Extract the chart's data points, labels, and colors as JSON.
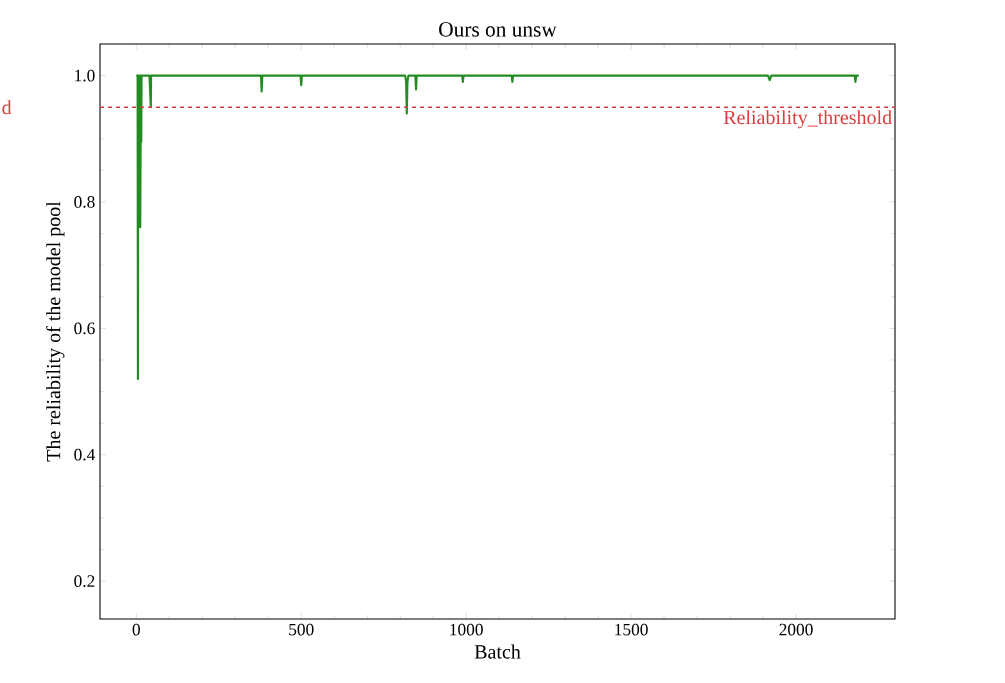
{
  "chart_data": {
    "type": "line",
    "title": "Ours on unsw",
    "xlabel": "Batch",
    "ylabel": "The reliability of the model pool",
    "x": [
      0,
      4,
      5,
      6,
      10,
      12,
      14,
      15,
      16,
      40,
      44,
      45,
      46,
      50,
      378,
      380,
      382,
      498,
      500,
      502,
      815,
      818,
      820,
      822,
      825,
      846,
      848,
      850,
      988,
      990,
      992,
      1138,
      1140,
      1142,
      1915,
      1920,
      1925,
      2178,
      2180,
      2182,
      2190
    ],
    "series": [
      {
        "color": "#228b22",
        "values": [
          1.0,
          1.0,
          0.52,
          1.0,
          1.0,
          0.76,
          1.0,
          0.895,
          1.0,
          1.0,
          0.95,
          1.0,
          1.0,
          1.0,
          1.0,
          0.975,
          1.0,
          1.0,
          0.985,
          1.0,
          1.0,
          0.99,
          0.94,
          0.99,
          1.0,
          1.0,
          0.978,
          1.0,
          1.0,
          0.99,
          1.0,
          1.0,
          0.99,
          1.0,
          1.0,
          0.993,
          1.0,
          1.0,
          0.99,
          1.0,
          1.0
        ]
      }
    ],
    "xlim": [
      -110,
      2300
    ],
    "ylim": [
      0.14,
      1.05
    ],
    "xticks": [
      0,
      500,
      1000,
      1500,
      2000
    ],
    "yticks": [
      {
        "value": 0.2,
        "label": "0.2"
      },
      {
        "value": 0.4,
        "label": "0.4"
      },
      {
        "value": 0.6,
        "label": "0.6"
      },
      {
        "value": 0.8,
        "label": "0.8"
      },
      {
        "value": 1.0,
        "label": "1.0"
      }
    ],
    "ref_lines": [
      {
        "axis": "y",
        "value": 0.95,
        "label": "Reliability_threshold",
        "color": "#dd3c3c",
        "line_style": "dashed"
      }
    ],
    "annotations": [
      "d"
    ],
    "grid": false,
    "marker": "none",
    "line_style": "solid"
  }
}
